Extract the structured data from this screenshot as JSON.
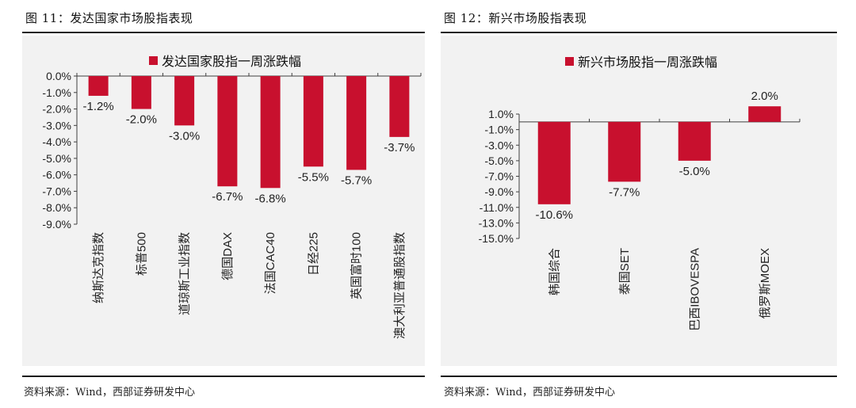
{
  "left": {
    "figure_title": "图 11：发达国家市场股指表现",
    "source": "资料来源：Wind，西部证券研发中心"
  },
  "right": {
    "figure_title": "图 12：新兴市场股指表现",
    "source": "资料来源：Wind，西部证券研发中心"
  },
  "colors": {
    "bar": "#c8102e",
    "panel_bg": "#f2f2f2",
    "axis": "#404040"
  },
  "chart_data": [
    {
      "type": "bar",
      "title": "发达国家股指一周涨跌幅",
      "legend": "发达国家股指一周涨跌幅",
      "legend_position": "top",
      "categories": [
        {
          "pre": "纳斯达克指数",
          "latin": ""
        },
        {
          "pre": "标普",
          "latin": "500"
        },
        {
          "pre": "道琼斯工业指数",
          "latin": ""
        },
        {
          "pre": "德国",
          "latin": "DAX"
        },
        {
          "pre": "法国",
          "latin": "CAC40"
        },
        {
          "pre": "日经",
          "latin": "225"
        },
        {
          "pre": "英国富时",
          "latin": "100"
        },
        {
          "pre": "澳大利亚普通股指数",
          "latin": ""
        }
      ],
      "values": [
        -1.2,
        -2.0,
        -3.0,
        -6.7,
        -6.8,
        -5.5,
        -5.7,
        -3.7
      ],
      "labels": [
        "-1.2%",
        "-2.0%",
        "-3.0%",
        "-6.7%",
        "-6.8%",
        "-5.5%",
        "-5.7%",
        "-3.7%"
      ],
      "yticks": [
        0,
        -1,
        -2,
        -3,
        -4,
        -5,
        -6,
        -7,
        -8,
        -9
      ],
      "ytick_labels": [
        "0.0%",
        "-1.0%",
        "-2.0%",
        "-3.0%",
        "-4.0%",
        "-5.0%",
        "-6.0%",
        "-7.0%",
        "-8.0%",
        "-9.0%"
      ],
      "ylim": [
        -9,
        0
      ],
      "xlabel": "",
      "ylabel": "",
      "grid": false
    },
    {
      "type": "bar",
      "title": "新兴市场股指一周涨跌幅",
      "legend": "新兴市场股指一周涨跌幅",
      "legend_position": "top",
      "categories": [
        {
          "pre": "韩国综合",
          "latin": ""
        },
        {
          "pre": "泰国",
          "latin": "SET"
        },
        {
          "pre": "巴西",
          "latin": "IBOVESPA"
        },
        {
          "pre": "俄罗斯",
          "latin": "MOEX"
        }
      ],
      "values": [
        -10.6,
        -7.7,
        -5.0,
        2.0
      ],
      "labels": [
        "-10.6%",
        "-7.7%",
        "-5.0%",
        "2.0%"
      ],
      "yticks": [
        1,
        -1,
        -3,
        -5,
        -7,
        -9,
        -11,
        -13,
        -15
      ],
      "ytick_labels": [
        "1.0%",
        "-1.0%",
        "-3.0%",
        "-5.0%",
        "-7.0%",
        "-9.0%",
        "-11.0%",
        "-13.0%",
        "-15.0%"
      ],
      "ylim": [
        -15,
        1
      ],
      "xlabel": "",
      "ylabel": "",
      "grid": false
    }
  ]
}
